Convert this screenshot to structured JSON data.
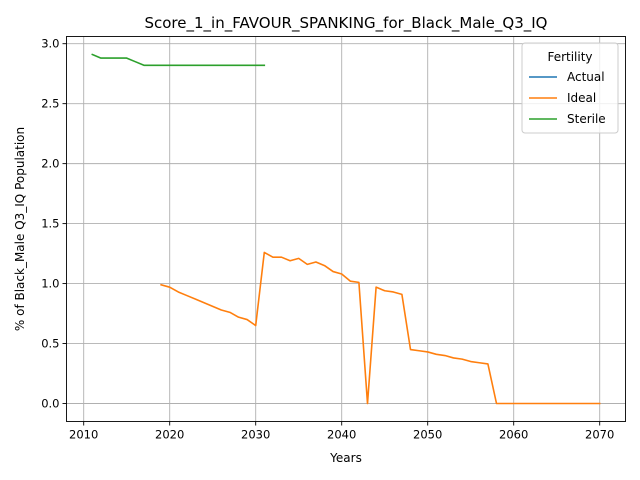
{
  "chart_data": {
    "type": "line",
    "title": "Score_1_in_FAVOUR_SPANKING_for_Black_Male_Q3_IQ",
    "xlabel": "Years",
    "ylabel": "% of Black_Male Q3_IQ Population",
    "xlim": [
      2008,
      2073
    ],
    "ylim": [
      -0.15,
      3.06
    ],
    "xticks": [
      2010,
      2020,
      2030,
      2040,
      2050,
      2060,
      2070
    ],
    "yticks": [
      0.0,
      0.5,
      1.0,
      1.5,
      2.0,
      2.5,
      3.0
    ],
    "xtick_labels": [
      "2010",
      "2020",
      "2030",
      "2040",
      "2050",
      "2060",
      "2070"
    ],
    "ytick_labels": [
      "0.0",
      "0.5",
      "1.0",
      "1.5",
      "2.0",
      "2.5",
      "3.0"
    ],
    "grid": true,
    "legend": {
      "title": "Fertility",
      "position": "upper right",
      "entries": [
        "Actual",
        "Ideal",
        "Sterile"
      ]
    },
    "series": [
      {
        "name": "Actual",
        "color": "#1f77b4",
        "x": [],
        "y": []
      },
      {
        "name": "Ideal",
        "color": "#ff7f0e",
        "x": [
          2019,
          2020,
          2021,
          2022,
          2023,
          2024,
          2025,
          2026,
          2027,
          2028,
          2029,
          2030,
          2031,
          2032,
          2033,
          2034,
          2035,
          2036,
          2037,
          2038,
          2039,
          2040,
          2041,
          2042,
          2043,
          2044,
          2045,
          2046,
          2047,
          2048,
          2049,
          2050,
          2051,
          2052,
          2053,
          2054,
          2055,
          2056,
          2057,
          2058,
          2059,
          2060,
          2061,
          2062,
          2063,
          2064,
          2065,
          2066,
          2067,
          2068,
          2069,
          2070
        ],
        "y": [
          0.99,
          0.97,
          0.93,
          0.9,
          0.87,
          0.84,
          0.81,
          0.78,
          0.76,
          0.72,
          0.7,
          0.65,
          1.26,
          1.22,
          1.22,
          1.19,
          1.21,
          1.16,
          1.18,
          1.15,
          1.1,
          1.08,
          1.02,
          1.01,
          0.0,
          0.97,
          0.94,
          0.93,
          0.91,
          0.45,
          0.44,
          0.43,
          0.41,
          0.4,
          0.38,
          0.37,
          0.35,
          0.34,
          0.33,
          0.0,
          0.0,
          0.0,
          0.0,
          0.0,
          0.0,
          0.0,
          0.0,
          0.0,
          0.0,
          0.0,
          0.0,
          0.0
        ]
      },
      {
        "name": "Sterile",
        "color": "#2ca02c",
        "x": [
          2011,
          2012,
          2013,
          2014,
          2015,
          2016,
          2017,
          2018,
          2019,
          2020,
          2021,
          2022,
          2023,
          2024,
          2025,
          2026,
          2027,
          2028,
          2029,
          2030,
          2031
        ],
        "y": [
          2.91,
          2.88,
          2.88,
          2.88,
          2.88,
          2.85,
          2.82,
          2.82,
          2.82,
          2.82,
          2.82,
          2.82,
          2.82,
          2.82,
          2.82,
          2.82,
          2.82,
          2.82,
          2.82,
          2.82,
          2.82
        ]
      }
    ]
  }
}
